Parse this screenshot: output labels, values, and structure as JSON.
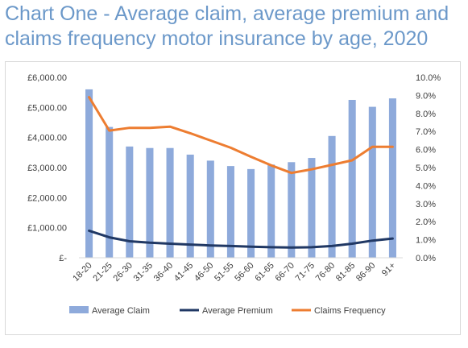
{
  "title": "Chart One - Average claim, average premium and claims frequency motor insurance by age, 2020",
  "chart_data": {
    "type": "bar",
    "categories": [
      "18-20",
      "21-25",
      "26-30",
      "31-35",
      "36-40",
      "41-45",
      "46-50",
      "51-55",
      "56-60",
      "61-65",
      "66-70",
      "71-75",
      "76-80",
      "81-85",
      "86-90",
      "91+"
    ],
    "series": [
      {
        "name": "Average Claim",
        "type": "bar",
        "axis": "left",
        "color": "#8eaadb",
        "values": [
          5600,
          4350,
          3700,
          3650,
          3650,
          3430,
          3230,
          3050,
          2950,
          3100,
          3180,
          3320,
          4050,
          5250,
          5020,
          5300
        ]
      },
      {
        "name": "Average Premium",
        "type": "line",
        "axis": "left",
        "color": "#203864",
        "values": [
          900,
          680,
          550,
          500,
          470,
          440,
          410,
          390,
          370,
          350,
          340,
          350,
          390,
          470,
          570,
          640
        ]
      },
      {
        "name": "Claims Frequency",
        "type": "line",
        "axis": "right",
        "color": "#ed7d31",
        "values": [
          0.089,
          0.0705,
          0.072,
          0.072,
          0.0727,
          0.069,
          0.065,
          0.061,
          0.056,
          0.0512,
          0.047,
          0.049,
          0.0515,
          0.054,
          0.0615,
          0.0615
        ]
      }
    ],
    "y_left": {
      "min": 0,
      "max": 6000,
      "step": 1000,
      "tick_labels": [
        "£-",
        "£1,000.00",
        "£2,000.00",
        "£3,000.00",
        "£4,000.00",
        "£5,000.00",
        "£6,000.00"
      ]
    },
    "y_right": {
      "min": 0,
      "max": 0.1,
      "step": 0.01,
      "tick_labels": [
        "0.0%",
        "1.0%",
        "2.0%",
        "3.0%",
        "4.0%",
        "5.0%",
        "6.0%",
        "7.0%",
        "8.0%",
        "9.0%",
        "10.0%"
      ]
    },
    "grid": false,
    "legend_position": "bottom"
  }
}
